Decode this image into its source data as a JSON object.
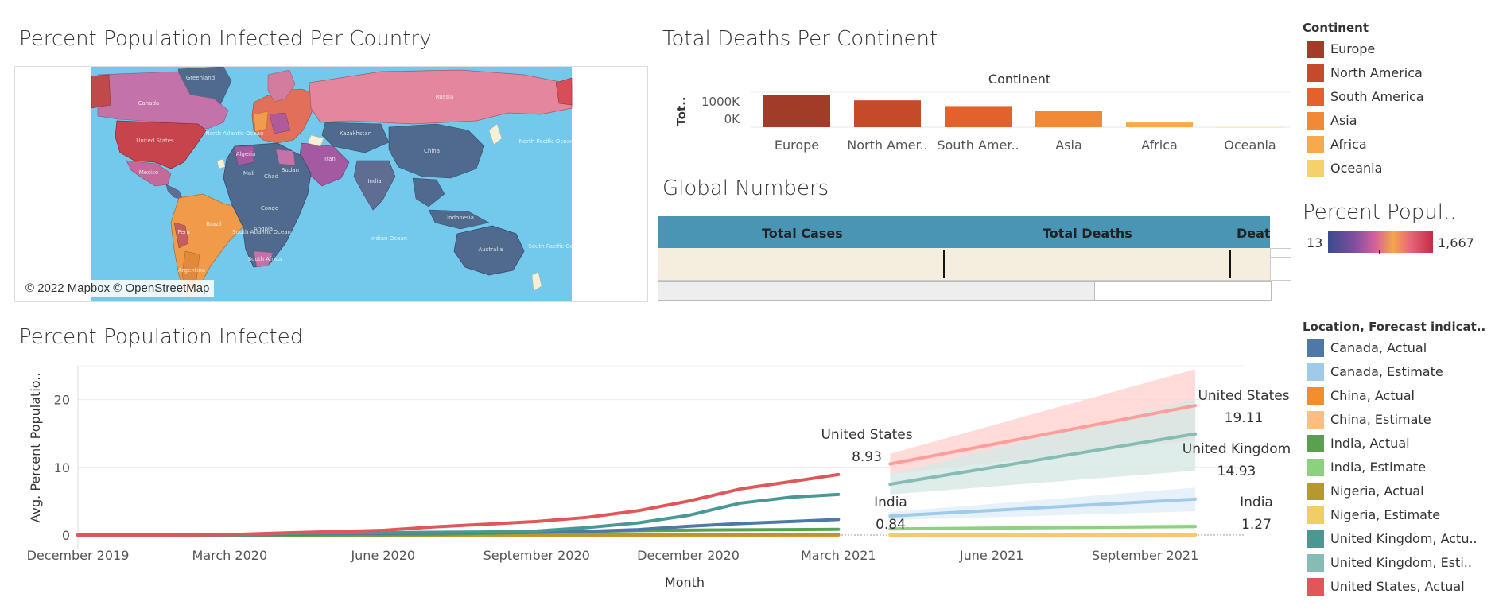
{
  "map_panel": {
    "title": "Percent Population Infected Per Country",
    "credit": "© 2022 Mapbox © OpenStreetMap",
    "ocean_color": "#72c9ec",
    "labels": [
      "Greenland",
      "Canada",
      "United States",
      "Mexico",
      "Brazil",
      "Peru",
      "Argentina",
      "Russia",
      "Kazakhstan",
      "China",
      "India",
      "Iran",
      "Algeria",
      "Mali",
      "Chad",
      "Sudan",
      "Congo",
      "Angola",
      "South Africa",
      "Indonesia",
      "Australia",
      "North Atlantic Ocean",
      "North Pacific Ocean",
      "South Atlantic Ocean",
      "Indian Ocean",
      "South Pacific Ocean"
    ]
  },
  "continent_chart": {
    "title": "Total Deaths Per Continent",
    "header": "Continent",
    "y_label": "Tot..",
    "y_ticks": [
      "1000K",
      "0K"
    ],
    "chart_data": {
      "type": "bar",
      "categories": [
        "Europe",
        "North America",
        "South America",
        "Asia",
        "Africa",
        "Oceania"
      ],
      "category_labels": [
        "Europe",
        "North Amer..",
        "South Amer..",
        "Asia",
        "Africa",
        "Oceania"
      ],
      "values": [
        1017000,
        845000,
        665000,
        520000,
        148000,
        1500
      ],
      "colors": [
        "#a23b27",
        "#c54a2a",
        "#e3612b",
        "#f28a35",
        "#f9a94c",
        "#f5d169"
      ],
      "ylim": [
        0,
        1100000
      ]
    }
  },
  "global_numbers": {
    "title": "Global Numbers",
    "headers": [
      "Total Cases",
      "Total Deaths",
      "Death"
    ]
  },
  "continent_legend": {
    "title": "Continent",
    "items": [
      {
        "label": "Europe",
        "color": "#a23b27"
      },
      {
        "label": "North America",
        "color": "#c54a2a"
      },
      {
        "label": "South America",
        "color": "#e3612b"
      },
      {
        "label": "Asia",
        "color": "#f28a35"
      },
      {
        "label": "Africa",
        "color": "#f9a94c"
      },
      {
        "label": "Oceania",
        "color": "#f5d169"
      }
    ]
  },
  "percent_legend": {
    "title": "Percent Popul..",
    "min": "13",
    "max": "1,667"
  },
  "line_chart": {
    "title": "Percent Population Infected",
    "xlabel": "Month",
    "ylabel": "Avg. Percent Populatio..",
    "x_ticks": [
      "December 2019",
      "March 2020",
      "June 2020",
      "September 2020",
      "December 2020",
      "March 2021",
      "June 2021",
      "September 2021"
    ],
    "y_ticks": [
      "20",
      "10",
      "0"
    ],
    "chart_data": {
      "type": "line",
      "x": [
        "2019-12",
        "2020-01",
        "2020-02",
        "2020-03",
        "2020-04",
        "2020-05",
        "2020-06",
        "2020-07",
        "2020-08",
        "2020-09",
        "2020-10",
        "2020-11",
        "2020-12",
        "2021-01",
        "2021-02",
        "2021-03"
      ],
      "ylim": [
        -2,
        25
      ],
      "series": [
        {
          "name": "United States, Actual",
          "color": "#e15759",
          "values": [
            0,
            0,
            0,
            0.05,
            0.3,
            0.5,
            0.7,
            1.2,
            1.6,
            2.0,
            2.6,
            3.6,
            5.0,
            6.8,
            7.9,
            8.93
          ]
        },
        {
          "name": "United Kingdom, Actual",
          "color": "#499894",
          "values": [
            0,
            0,
            0,
            0.02,
            0.2,
            0.3,
            0.35,
            0.4,
            0.45,
            0.6,
            1.1,
            1.8,
            2.9,
            4.7,
            5.6,
            6.0
          ]
        },
        {
          "name": "Canada, Actual",
          "color": "#4e79a7",
          "values": [
            0,
            0,
            0,
            0.02,
            0.1,
            0.2,
            0.25,
            0.3,
            0.35,
            0.4,
            0.55,
            0.8,
            1.3,
            1.7,
            2.0,
            2.3
          ]
        },
        {
          "name": "India, Actual",
          "color": "#59a14f",
          "values": [
            0,
            0,
            0,
            0,
            0.01,
            0.02,
            0.04,
            0.1,
            0.25,
            0.4,
            0.55,
            0.65,
            0.72,
            0.77,
            0.8,
            0.84
          ]
        },
        {
          "name": "Nigeria, Actual",
          "color": "#b6992d",
          "values": [
            0,
            0,
            0,
            0,
            0,
            0,
            0.01,
            0.01,
            0.02,
            0.03,
            0.03,
            0.04,
            0.05,
            0.06,
            0.08,
            0.08
          ]
        },
        {
          "name": "China, Actual",
          "color": "#f28e2b",
          "values": [
            0,
            0,
            0,
            0,
            0,
            0,
            0,
            0,
            0,
            0,
            0,
            0,
            0,
            0,
            0,
            0
          ]
        }
      ],
      "forecast": {
        "x": [
          "2021-04",
          "2021-10"
        ],
        "series": [
          {
            "name": "United States, Estimate",
            "color": "#ff9d9a",
            "band": "#ffd3d1",
            "values": [
              10.5,
              19.11
            ],
            "lower": [
              9.0,
              14.0
            ],
            "upper": [
              12.0,
              24.5
            ]
          },
          {
            "name": "United Kingdom, Estimate",
            "color": "#86bcb6",
            "band": "#d6e8e5",
            "values": [
              7.5,
              14.93
            ],
            "lower": [
              6.0,
              9.5
            ],
            "upper": [
              9.0,
              20.0
            ]
          },
          {
            "name": "Canada, Estimate",
            "color": "#a0cbe8",
            "band": "#e1eef7",
            "values": [
              2.8,
              5.3
            ],
            "lower": [
              2.2,
              3.5
            ],
            "upper": [
              3.4,
              7.0
            ]
          },
          {
            "name": "India, Estimate",
            "color": "#8cd17d",
            "band": "#e3f3df",
            "values": [
              0.9,
              1.27
            ],
            "lower": [
              0.7,
              0.9
            ],
            "upper": [
              1.1,
              1.6
            ]
          },
          {
            "name": "Nigeria, Estimate",
            "color": "#f1ce63",
            "band": "#fbf0cf",
            "values": [
              0.09,
              0.12
            ],
            "lower": [
              0.05,
              0.05
            ],
            "upper": [
              0.13,
              0.2
            ]
          },
          {
            "name": "China, Estimate",
            "color": "#ffbe7d",
            "band": "#ffe9d4",
            "values": [
              0.0,
              0.0
            ],
            "lower": [
              0.0,
              0.0
            ],
            "upper": [
              0.0,
              0.0
            ]
          }
        ]
      },
      "annotations": [
        {
          "label": "United States",
          "value": "8.93"
        },
        {
          "label": "India",
          "value": "0.84"
        },
        {
          "label": "United States",
          "value": "19.11"
        },
        {
          "label": "United Kingdom",
          "value": "14.93"
        },
        {
          "label": "India",
          "value": "1.27"
        }
      ]
    }
  },
  "line_legend": {
    "title": "Location, Forecast indicat..",
    "items": [
      {
        "label": "Canada, Actual",
        "color": "#4e79a7"
      },
      {
        "label": "Canada, Estimate",
        "color": "#a0cbe8"
      },
      {
        "label": "China, Actual",
        "color": "#f28e2b"
      },
      {
        "label": "China, Estimate",
        "color": "#ffbe7d"
      },
      {
        "label": "India, Actual",
        "color": "#59a14f"
      },
      {
        "label": "India, Estimate",
        "color": "#8cd17d"
      },
      {
        "label": "Nigeria, Actual",
        "color": "#b6992d"
      },
      {
        "label": "Nigeria, Estimate",
        "color": "#f1ce63"
      },
      {
        "label": "United Kingdom, Actu..",
        "color": "#499894"
      },
      {
        "label": "United Kingdom, Esti..",
        "color": "#86bcb6"
      },
      {
        "label": "United States, Actual",
        "color": "#e15759"
      }
    ]
  }
}
